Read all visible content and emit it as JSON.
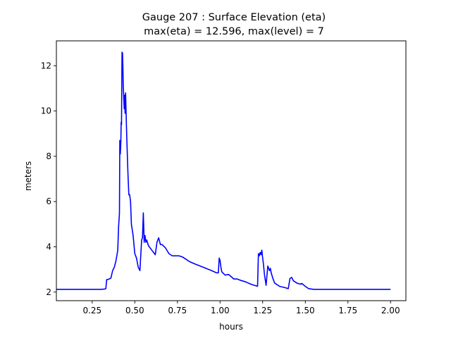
{
  "chart_data": {
    "type": "line",
    "title_line1": "Gauge 207 : Surface Elevation (eta)",
    "title_line2": "max(eta) =  12.596,    max(level) = 7",
    "xlabel": "hours",
    "ylabel": "meters",
    "xlim": [
      0.04,
      2.09
    ],
    "ylim": [
      1.62,
      13.1
    ],
    "xticks": [
      0.25,
      0.5,
      0.75,
      1.0,
      1.25,
      1.5,
      1.75,
      2.0
    ],
    "xtick_labels": [
      "0.25",
      "0.50",
      "0.75",
      "1.00",
      "1.25",
      "1.50",
      "1.75",
      "2.00"
    ],
    "yticks": [
      2,
      4,
      6,
      8,
      10,
      12
    ],
    "ytick_labels": [
      "2",
      "4",
      "6",
      "8",
      "10",
      "12"
    ],
    "grid": false,
    "line_color": "#0000ff",
    "series": [
      {
        "x": [
          0.04,
          0.1,
          0.2,
          0.3,
          0.32,
          0.33,
          0.335,
          0.34,
          0.35,
          0.36,
          0.37,
          0.38,
          0.39,
          0.4,
          0.405,
          0.41,
          0.412,
          0.415,
          0.418,
          0.42,
          0.422,
          0.425,
          0.428,
          0.43,
          0.432,
          0.435,
          0.438,
          0.44,
          0.443,
          0.446,
          0.45,
          0.453,
          0.456,
          0.46,
          0.465,
          0.47,
          0.475,
          0.48,
          0.49,
          0.5,
          0.51,
          0.515,
          0.52,
          0.53,
          0.54,
          0.545,
          0.55,
          0.555,
          0.56,
          0.565,
          0.57,
          0.58,
          0.59,
          0.6,
          0.61,
          0.62,
          0.63,
          0.64,
          0.65,
          0.66,
          0.68,
          0.7,
          0.72,
          0.74,
          0.76,
          0.78,
          0.8,
          0.82,
          0.85,
          0.9,
          0.95,
          0.98,
          0.99,
          0.995,
          1.0,
          1.005,
          1.01,
          1.02,
          1.03,
          1.05,
          1.07,
          1.08,
          1.1,
          1.12,
          1.15,
          1.18,
          1.2,
          1.22,
          1.225,
          1.23,
          1.235,
          1.24,
          1.245,
          1.25,
          1.255,
          1.26,
          1.27,
          1.28,
          1.29,
          1.295,
          1.3,
          1.31,
          1.32,
          1.33,
          1.35,
          1.38,
          1.4,
          1.41,
          1.42,
          1.43,
          1.45,
          1.47,
          1.48,
          1.5,
          1.52,
          1.55,
          1.6,
          1.7,
          1.8,
          1.9,
          2.0
        ],
        "y": [
          2.12,
          2.12,
          2.12,
          2.12,
          2.13,
          2.15,
          2.55,
          2.55,
          2.58,
          2.62,
          2.95,
          3.1,
          3.4,
          3.85,
          4.9,
          5.5,
          8.7,
          8.1,
          8.6,
          9.5,
          9.4,
          12.6,
          12.55,
          12.0,
          11.2,
          10.6,
          10.1,
          10.7,
          9.9,
          10.8,
          9.6,
          8.8,
          8.1,
          7.2,
          6.3,
          6.3,
          6.0,
          5.0,
          4.5,
          3.7,
          3.5,
          3.3,
          3.1,
          2.95,
          4.3,
          4.4,
          5.5,
          4.2,
          4.5,
          4.2,
          4.3,
          4.05,
          3.95,
          3.85,
          3.75,
          3.65,
          4.2,
          4.4,
          4.1,
          4.1,
          3.95,
          3.7,
          3.6,
          3.6,
          3.6,
          3.55,
          3.45,
          3.35,
          3.25,
          3.1,
          2.95,
          2.85,
          2.85,
          3.5,
          3.4,
          3.1,
          2.9,
          2.82,
          2.75,
          2.78,
          2.65,
          2.58,
          2.58,
          2.52,
          2.45,
          2.35,
          2.3,
          2.26,
          3.7,
          3.6,
          3.75,
          3.65,
          3.85,
          3.5,
          3.2,
          2.8,
          2.3,
          3.15,
          2.95,
          3.05,
          2.85,
          2.6,
          2.4,
          2.35,
          2.25,
          2.2,
          2.15,
          2.6,
          2.65,
          2.5,
          2.4,
          2.35,
          2.38,
          2.25,
          2.15,
          2.12,
          2.12,
          2.12,
          2.12,
          2.12,
          2.12
        ]
      }
    ]
  }
}
